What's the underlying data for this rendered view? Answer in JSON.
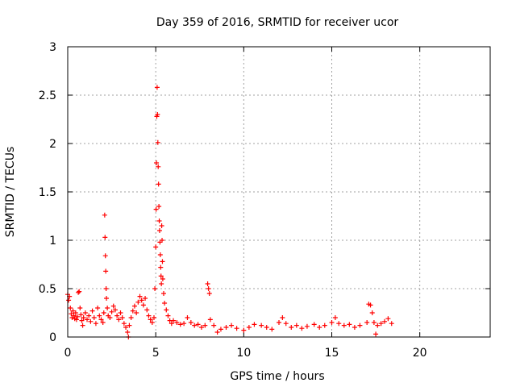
{
  "chart_data": {
    "type": "scatter",
    "title": "Day 359 of 2016, SRMTID for receiver ucor",
    "xlabel": "GPS time / hours",
    "ylabel": "SRMTID / TECUs",
    "xlim": [
      0,
      24
    ],
    "ylim": [
      0,
      3
    ],
    "xticks": [
      0,
      5,
      10,
      15,
      20
    ],
    "xtick_labels": [
      "0",
      "5",
      "10",
      "15",
      "20"
    ],
    "yticks": [
      0,
      0.5,
      1,
      1.5,
      2,
      2.5,
      3
    ],
    "ytick_labels": [
      "0",
      "0.5",
      "1",
      "1.5",
      "2",
      "2.5",
      "3"
    ],
    "grid": true,
    "marker": "+",
    "series": [
      {
        "name": "SRMTID",
        "color": "#ff0000",
        "points": [
          [
            0.0,
            0.44
          ],
          [
            0.05,
            0.38
          ],
          [
            0.1,
            0.42
          ],
          [
            0.15,
            0.3
          ],
          [
            0.2,
            0.24
          ],
          [
            0.25,
            0.2
          ],
          [
            0.3,
            0.27
          ],
          [
            0.35,
            0.22
          ],
          [
            0.4,
            0.19
          ],
          [
            0.45,
            0.25
          ],
          [
            0.5,
            0.18
          ],
          [
            0.55,
            0.21
          ],
          [
            0.6,
            0.46
          ],
          [
            0.65,
            0.47
          ],
          [
            0.7,
            0.3
          ],
          [
            0.75,
            0.23
          ],
          [
            0.8,
            0.17
          ],
          [
            0.85,
            0.12
          ],
          [
            0.9,
            0.2
          ],
          [
            1.0,
            0.25
          ],
          [
            1.1,
            0.18
          ],
          [
            1.2,
            0.22
          ],
          [
            1.3,
            0.16
          ],
          [
            1.4,
            0.27
          ],
          [
            1.5,
            0.2
          ],
          [
            1.6,
            0.14
          ],
          [
            1.7,
            0.3
          ],
          [
            1.8,
            0.22
          ],
          [
            1.9,
            0.18
          ],
          [
            2.0,
            0.15
          ],
          [
            2.05,
            0.25
          ],
          [
            2.1,
            1.26
          ],
          [
            2.12,
            1.03
          ],
          [
            2.14,
            0.84
          ],
          [
            2.16,
            0.68
          ],
          [
            2.18,
            0.5
          ],
          [
            2.2,
            0.4
          ],
          [
            2.25,
            0.3
          ],
          [
            2.3,
            0.22
          ],
          [
            2.4,
            0.2
          ],
          [
            2.5,
            0.26
          ],
          [
            2.6,
            0.32
          ],
          [
            2.7,
            0.28
          ],
          [
            2.8,
            0.22
          ],
          [
            2.9,
            0.18
          ],
          [
            3.0,
            0.25
          ],
          [
            3.1,
            0.2
          ],
          [
            3.2,
            0.14
          ],
          [
            3.3,
            0.1
          ],
          [
            3.4,
            0.05
          ],
          [
            3.45,
            0.0
          ],
          [
            3.5,
            0.12
          ],
          [
            3.6,
            0.2
          ],
          [
            3.7,
            0.27
          ],
          [
            3.8,
            0.32
          ],
          [
            3.9,
            0.25
          ],
          [
            4.0,
            0.36
          ],
          [
            4.1,
            0.42
          ],
          [
            4.2,
            0.38
          ],
          [
            4.3,
            0.33
          ],
          [
            4.4,
            0.4
          ],
          [
            4.5,
            0.28
          ],
          [
            4.6,
            0.22
          ],
          [
            4.7,
            0.18
          ],
          [
            4.8,
            0.15
          ],
          [
            4.9,
            0.2
          ],
          [
            4.95,
            0.5
          ],
          [
            5.0,
            0.93
          ],
          [
            5.02,
            1.32
          ],
          [
            5.04,
            1.8
          ],
          [
            5.06,
            2.28
          ],
          [
            5.08,
            2.58
          ],
          [
            5.1,
            2.3
          ],
          [
            5.12,
            2.01
          ],
          [
            5.14,
            1.76
          ],
          [
            5.16,
            1.58
          ],
          [
            5.18,
            1.35
          ],
          [
            5.2,
            1.2
          ],
          [
            5.22,
            1.1
          ],
          [
            5.24,
            0.98
          ],
          [
            5.26,
            0.85
          ],
          [
            5.28,
            0.72
          ],
          [
            5.3,
            0.63
          ],
          [
            5.32,
            0.55
          ],
          [
            5.34,
            1.15
          ],
          [
            5.36,
            1.0
          ],
          [
            5.38,
            0.78
          ],
          [
            5.4,
            0.6
          ],
          [
            5.45,
            0.45
          ],
          [
            5.5,
            0.35
          ],
          [
            5.6,
            0.28
          ],
          [
            5.7,
            0.22
          ],
          [
            5.8,
            0.17
          ],
          [
            5.9,
            0.14
          ],
          [
            6.0,
            0.17
          ],
          [
            6.2,
            0.15
          ],
          [
            6.4,
            0.13
          ],
          [
            6.6,
            0.14
          ],
          [
            6.8,
            0.2
          ],
          [
            7.0,
            0.15
          ],
          [
            7.2,
            0.12
          ],
          [
            7.4,
            0.13
          ],
          [
            7.6,
            0.1
          ],
          [
            7.8,
            0.12
          ],
          [
            7.95,
            0.55
          ],
          [
            8.0,
            0.5
          ],
          [
            8.05,
            0.45
          ],
          [
            8.1,
            0.18
          ],
          [
            8.3,
            0.12
          ],
          [
            8.5,
            0.05
          ],
          [
            8.7,
            0.08
          ],
          [
            9.0,
            0.1
          ],
          [
            9.3,
            0.12
          ],
          [
            9.6,
            0.09
          ],
          [
            10.0,
            0.07
          ],
          [
            10.3,
            0.1
          ],
          [
            10.6,
            0.13
          ],
          [
            11.0,
            0.12
          ],
          [
            11.3,
            0.1
          ],
          [
            11.6,
            0.08
          ],
          [
            12.0,
            0.15
          ],
          [
            12.2,
            0.2
          ],
          [
            12.4,
            0.14
          ],
          [
            12.7,
            0.1
          ],
          [
            13.0,
            0.12
          ],
          [
            13.3,
            0.09
          ],
          [
            13.6,
            0.11
          ],
          [
            14.0,
            0.13
          ],
          [
            14.3,
            0.1
          ],
          [
            14.6,
            0.12
          ],
          [
            15.0,
            0.15
          ],
          [
            15.2,
            0.2
          ],
          [
            15.4,
            0.14
          ],
          [
            15.7,
            0.12
          ],
          [
            16.0,
            0.13
          ],
          [
            16.3,
            0.1
          ],
          [
            16.6,
            0.12
          ],
          [
            17.0,
            0.15
          ],
          [
            17.1,
            0.34
          ],
          [
            17.2,
            0.33
          ],
          [
            17.3,
            0.25
          ],
          [
            17.4,
            0.15
          ],
          [
            17.5,
            0.03
          ],
          [
            17.6,
            0.12
          ],
          [
            17.8,
            0.14
          ],
          [
            18.0,
            0.16
          ],
          [
            18.2,
            0.19
          ],
          [
            18.4,
            0.14
          ]
        ]
      }
    ]
  }
}
